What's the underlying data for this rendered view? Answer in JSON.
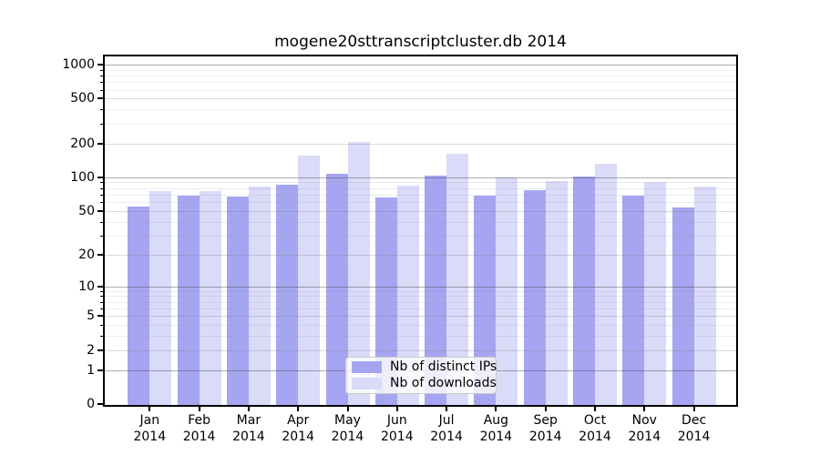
{
  "chart_data": {
    "type": "bar",
    "title": "mogene20sttranscriptcluster.db 2014",
    "categories": [
      "Jan",
      "Feb",
      "Mar",
      "Apr",
      "May",
      "Jun",
      "Jul",
      "Aug",
      "Sep",
      "Oct",
      "Nov",
      "Dec"
    ],
    "category_year": "2014",
    "series": [
      {
        "name": "Nb of distinct IPs",
        "color": "#a5a5f1",
        "values": [
          55,
          69,
          67,
          86,
          107,
          66,
          104,
          68,
          77,
          101,
          68,
          54
        ]
      },
      {
        "name": "Nb of downloads",
        "color": "#dadaf9",
        "values": [
          75,
          75,
          82,
          157,
          205,
          85,
          163,
          99,
          92,
          133,
          91,
          82
        ]
      }
    ],
    "yscale": "log1p",
    "ylim": [
      0,
      1070
    ],
    "yticks": [
      1000,
      500,
      200,
      100,
      50,
      20,
      10,
      5,
      2,
      1,
      0
    ],
    "ymidticks": [
      500,
      200,
      50,
      20,
      5,
      2
    ],
    "yminorticks": [
      3,
      4,
      6,
      7,
      8,
      9,
      30,
      40,
      60,
      70,
      80,
      90,
      300,
      400,
      600,
      700,
      800,
      900
    ],
    "grid": "both",
    "legend_position": "lower center"
  }
}
